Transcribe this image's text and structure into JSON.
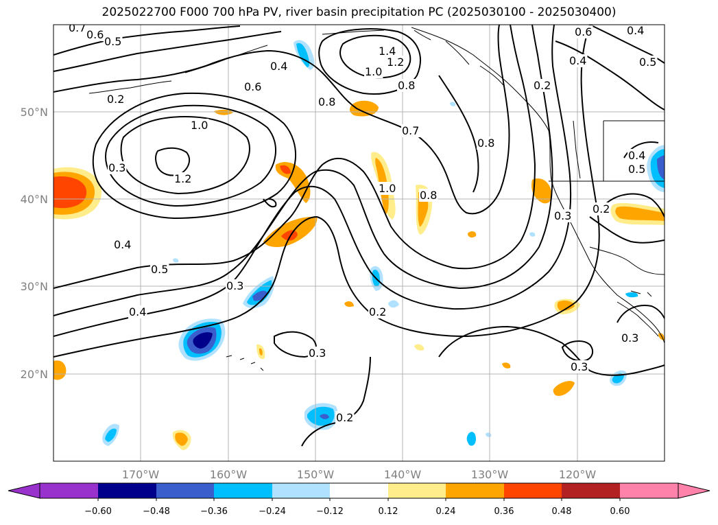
{
  "title": "2025022700 F000 700 hPa PV, river basin precipitation PC (2025030100 - 2025030400)",
  "map": {
    "lon_labels": [
      "170°W",
      "160°W",
      "150°W",
      "140°W",
      "130°W",
      "120°W"
    ],
    "lat_labels": [
      "50°N",
      "40°N",
      "30°N",
      "20°N"
    ],
    "contour_labels": [
      "0.7",
      "0.6",
      "0.5",
      "0.4",
      "0.6",
      "0.8",
      "1.0",
      "1.2",
      "0.3",
      "0.2",
      "1.0",
      "1.2",
      "1.4",
      "0.8",
      "0.7",
      "0.8",
      "1.0",
      "0.8",
      "0.2",
      "0.6",
      "0.4",
      "0.4",
      "0.5",
      "0.4",
      "0.5",
      "0.3",
      "0.2",
      "0.4",
      "0.5",
      "0.3",
      "0.4",
      "0.2",
      "0.3",
      "0.2",
      "0.3",
      "0.3"
    ]
  },
  "colorbar": {
    "ticks": [
      "−0.60",
      "−0.48",
      "−0.36",
      "−0.24",
      "−0.12",
      "0.12",
      "0.24",
      "0.36",
      "0.48",
      "0.60"
    ],
    "colors": [
      "#9932cc",
      "#00008b",
      "#3a5fcd",
      "#00bfff",
      "#b0e2ff",
      "#ffffff",
      "#ffec8b",
      "#ffa500",
      "#ff4500",
      "#b22222",
      "#ff82ab"
    ]
  }
}
